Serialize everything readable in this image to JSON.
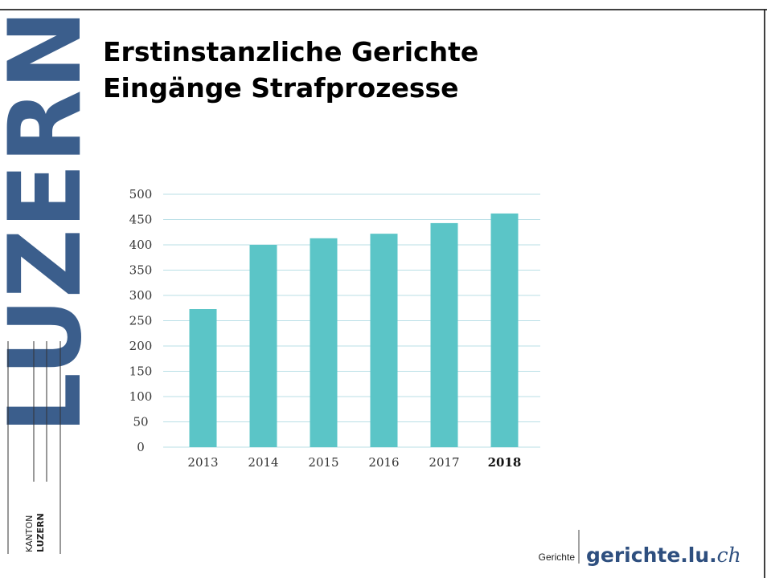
{
  "logo": {
    "wordmark": "LUZERN",
    "small_top": "KANTON",
    "small_bottom": "LUZERN"
  },
  "title_lines": [
    "Erstinstanzliche Gerichte",
    "Eingänge Strafprozesse"
  ],
  "footer": {
    "label": "Gerichte",
    "site": "gerichte.lu.",
    "tld": "ch"
  },
  "chart_data": {
    "type": "bar",
    "categories": [
      "2013",
      "2014",
      "2015",
      "2016",
      "2017",
      "2018"
    ],
    "values": [
      273,
      400,
      413,
      422,
      443,
      462
    ],
    "color": "#5bc5c7",
    "ylim": [
      0,
      500
    ],
    "yticks": [
      0,
      50,
      100,
      150,
      200,
      250,
      300,
      350,
      400,
      450,
      500
    ],
    "grid": true
  }
}
